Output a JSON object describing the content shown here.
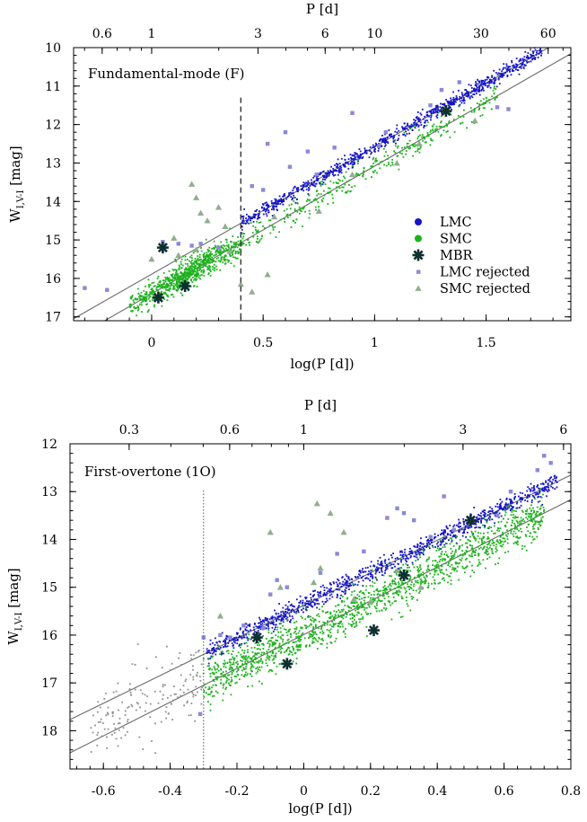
{
  "chart_data": [
    {
      "type": "scatter",
      "panel_label": "Fundamental-mode (F)",
      "xlabel": "log(P [d])",
      "ylabel_main": "W",
      "ylabel_sub": "I,V-I",
      "ylabel_unit": " [mag]",
      "top_axis_label": "P [d]",
      "xlim": [
        -0.35,
        1.88
      ],
      "ylim": [
        17.1,
        10.0
      ],
      "x_ticks": [
        0,
        0.5,
        1,
        1.5
      ],
      "x_tick_labels": [
        "0",
        "0.5",
        "1",
        "1.5"
      ],
      "y_ticks": [
        10,
        11,
        12,
        13,
        14,
        15,
        16,
        17
      ],
      "y_tick_labels": [
        "10",
        "11",
        "12",
        "13",
        "14",
        "15",
        "16",
        "17"
      ],
      "top_ticks": [
        0.6,
        1,
        3,
        6,
        10,
        30,
        60
      ],
      "top_tick_labels": [
        "0.6",
        "1",
        "3",
        "6",
        "10",
        "30",
        "60"
      ],
      "cutoff_logP": 0.4,
      "cutoff_style": "dashed",
      "legend_position": "lower-right",
      "legend": [
        {
          "label": "LMC",
          "marker": "circle",
          "color": "#1414c8"
        },
        {
          "label": "SMC",
          "marker": "circle",
          "color": "#1db21d"
        },
        {
          "label": "MBR",
          "marker": "asterisk",
          "color": "#0f3030"
        },
        {
          "label": "LMC rejected",
          "marker": "square",
          "color": "#8a8ad6"
        },
        {
          "label": "SMC rejected",
          "marker": "triangle",
          "color": "#8fae8f"
        }
      ],
      "relations": [
        {
          "name": "LMC",
          "slope": -3.31,
          "intercept": 15.89,
          "x_range": [
            -0.35,
            1.88
          ]
        },
        {
          "name": "SMC",
          "slope": -3.32,
          "intercept": 16.4,
          "x_range": [
            -0.35,
            1.88
          ]
        }
      ],
      "series": [
        {
          "name": "LMC",
          "x_range": [
            0.4,
            1.75
          ],
          "scatter": 0.09,
          "count": 900
        },
        {
          "name": "SMC",
          "x_range": [
            -0.1,
            1.55
          ],
          "scatter": 0.18,
          "count": 1200
        }
      ],
      "mbr_points": [
        {
          "logP": 0.05,
          "W": 15.2
        },
        {
          "logP": 0.03,
          "W": 16.5
        },
        {
          "logP": 0.15,
          "W": 16.2
        },
        {
          "logP": 1.32,
          "W": 11.65
        }
      ],
      "lmc_rejected": [
        {
          "logP": -0.3,
          "W": 16.25
        },
        {
          "logP": -0.2,
          "W": 16.3
        },
        {
          "logP": 0.05,
          "W": 15.05
        },
        {
          "logP": 0.12,
          "W": 15.1
        },
        {
          "logP": 0.18,
          "W": 15.15
        },
        {
          "logP": 0.22,
          "W": 15.1
        },
        {
          "logP": 0.3,
          "W": 15.2
        },
        {
          "logP": 0.45,
          "W": 13.6
        },
        {
          "logP": 0.5,
          "W": 13.7
        },
        {
          "logP": 0.52,
          "W": 12.5
        },
        {
          "logP": 0.6,
          "W": 12.2
        },
        {
          "logP": 0.62,
          "W": 13.1
        },
        {
          "logP": 0.7,
          "W": 12.7
        },
        {
          "logP": 0.74,
          "W": 13.3
        },
        {
          "logP": 0.82,
          "W": 12.6
        },
        {
          "logP": 0.9,
          "W": 11.7
        },
        {
          "logP": 1.02,
          "W": 12.55
        },
        {
          "logP": 1.05,
          "W": 12.2
        },
        {
          "logP": 1.25,
          "W": 11.5
        },
        {
          "logP": 1.3,
          "W": 11.1
        },
        {
          "logP": 1.38,
          "W": 10.9
        },
        {
          "logP": 1.55,
          "W": 11.55
        },
        {
          "logP": 1.6,
          "W": 11.6
        }
      ],
      "smc_rejected": [
        {
          "logP": 0.18,
          "W": 13.55
        },
        {
          "logP": 0.2,
          "W": 13.9
        },
        {
          "logP": 0.22,
          "W": 14.3
        },
        {
          "logP": 0.25,
          "W": 14.5
        },
        {
          "logP": 0.3,
          "W": 14.15
        },
        {
          "logP": 0.33,
          "W": 14.65
        },
        {
          "logP": 0.1,
          "W": 14.95
        },
        {
          "logP": 0.0,
          "W": 15.5
        },
        {
          "logP": 0.12,
          "W": 15.4
        },
        {
          "logP": 0.2,
          "W": 15.25
        },
        {
          "logP": 0.35,
          "W": 15.3
        },
        {
          "logP": 0.4,
          "W": 16.15
        },
        {
          "logP": 0.45,
          "W": 16.35
        },
        {
          "logP": 0.52,
          "W": 15.9
        },
        {
          "logP": 0.55,
          "W": 14.4
        },
        {
          "logP": 0.75,
          "W": 14.25
        },
        {
          "logP": 0.9,
          "W": 13.3
        },
        {
          "logP": 1.1,
          "W": 13.0
        },
        {
          "logP": 1.2,
          "W": 12.5
        },
        {
          "logP": 1.45,
          "W": 11.9
        }
      ]
    },
    {
      "type": "scatter",
      "panel_label": "First-overtone (1O)",
      "xlabel": "log(P [d])",
      "ylabel_main": "W",
      "ylabel_sub": "I,V-I",
      "ylabel_unit": " [mag]",
      "top_axis_label": "P [d]",
      "xlim": [
        -0.7,
        0.8
      ],
      "ylim": [
        18.8,
        12.0
      ],
      "x_ticks": [
        -0.6,
        -0.4,
        -0.2,
        0,
        0.2,
        0.4,
        0.6,
        0.8
      ],
      "x_tick_labels": [
        "-0.6",
        "-0.4",
        "-0.2",
        "0",
        "0.2",
        "0.4",
        "0.6",
        "0.8"
      ],
      "y_ticks": [
        12,
        13,
        14,
        15,
        16,
        17,
        18
      ],
      "y_tick_labels": [
        "12",
        "13",
        "14",
        "15",
        "16",
        "17",
        "18"
      ],
      "top_ticks": [
        0.3,
        0.6,
        1,
        3,
        6
      ],
      "top_tick_labels": [
        "0.3",
        "0.6",
        "1",
        "3",
        "6"
      ],
      "cutoff_logP": -0.3,
      "cutoff_style": "dotted",
      "relations": [
        {
          "name": "LMC",
          "slope": -3.41,
          "intercept": 15.38,
          "x_range": [
            -0.7,
            0.8
          ]
        },
        {
          "name": "SMC",
          "slope": -3.53,
          "intercept": 15.99,
          "x_range": [
            -0.7,
            0.8
          ]
        }
      ],
      "series": [
        {
          "name": "LMC",
          "x_range": [
            -0.29,
            0.76
          ],
          "scatter": 0.1,
          "count": 1000
        },
        {
          "name": "SMC",
          "x_range": [
            -0.3,
            0.72
          ],
          "scatter": 0.22,
          "count": 1500
        },
        {
          "name": "excluded (gray)",
          "x_range": [
            -0.64,
            -0.3
          ],
          "scatter": 0.4,
          "count": 160
        }
      ],
      "mbr_points": [
        {
          "logP": -0.14,
          "W": 16.05
        },
        {
          "logP": -0.05,
          "W": 16.6
        },
        {
          "logP": 0.21,
          "W": 15.9
        },
        {
          "logP": 0.3,
          "W": 14.75
        },
        {
          "logP": 0.5,
          "W": 13.6
        }
      ],
      "lmc_rejected": [
        {
          "logP": -0.31,
          "W": 17.65
        },
        {
          "logP": -0.25,
          "W": 16.0
        },
        {
          "logP": -0.22,
          "W": 16.05
        },
        {
          "logP": -0.18,
          "W": 15.8
        },
        {
          "logP": -0.12,
          "W": 15.85
        },
        {
          "logP": -0.1,
          "W": 15.15
        },
        {
          "logP": -0.08,
          "W": 14.85
        },
        {
          "logP": -0.05,
          "W": 15.0
        },
        {
          "logP": 0.05,
          "W": 14.7
        },
        {
          "logP": 0.1,
          "W": 14.3
        },
        {
          "logP": 0.18,
          "W": 14.25
        },
        {
          "logP": 0.25,
          "W": 13.55
        },
        {
          "logP": 0.28,
          "W": 13.35
        },
        {
          "logP": 0.3,
          "W": 13.45
        },
        {
          "logP": 0.33,
          "W": 13.6
        },
        {
          "logP": 0.38,
          "W": 13.95
        },
        {
          "logP": 0.42,
          "W": 13.1
        },
        {
          "logP": 0.45,
          "W": 13.8
        },
        {
          "logP": 0.58,
          "W": 13.5
        },
        {
          "logP": 0.62,
          "W": 13.0
        },
        {
          "logP": 0.7,
          "W": 12.55
        },
        {
          "logP": 0.72,
          "W": 12.25
        },
        {
          "logP": 0.74,
          "W": 12.4
        },
        {
          "logP": -0.3,
          "W": 16.05
        }
      ],
      "smc_rejected": [
        {
          "logP": -0.1,
          "W": 13.85
        },
        {
          "logP": -0.07,
          "W": 15.0
        },
        {
          "logP": 0.05,
          "W": 14.6
        },
        {
          "logP": 0.03,
          "W": 14.9
        },
        {
          "logP": 0.04,
          "W": 13.25
        },
        {
          "logP": 0.08,
          "W": 13.45
        },
        {
          "logP": 0.12,
          "W": 13.85
        },
        {
          "logP": 0.15,
          "W": 15.25
        },
        {
          "logP": 0.2,
          "W": 15.3
        },
        {
          "logP": 0.28,
          "W": 14.65
        },
        {
          "logP": 0.35,
          "W": 15.0
        },
        {
          "logP": -0.25,
          "W": 15.6
        }
      ]
    }
  ]
}
